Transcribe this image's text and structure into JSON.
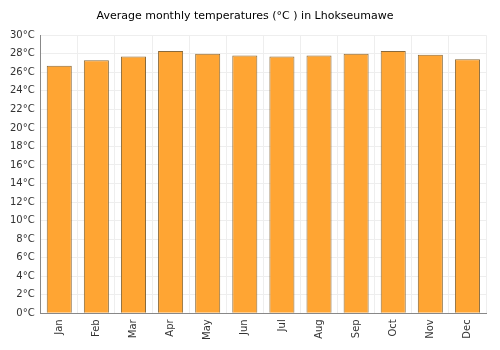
{
  "chart_data": {
    "type": "bar",
    "title": "Average monthly temperatures (°C ) in Lhokseumawe",
    "categories": [
      "Jan",
      "Feb",
      "Mar",
      "Apr",
      "May",
      "Jun",
      "Jul",
      "Aug",
      "Sep",
      "Oct",
      "Nov",
      "Dec"
    ],
    "values": [
      26.7,
      27.3,
      27.7,
      28.3,
      28.0,
      27.8,
      27.7,
      27.8,
      28.0,
      28.3,
      27.9,
      27.4
    ],
    "color": "#ffa533",
    "ylim": [
      0,
      30
    ],
    "yticks": [
      {
        "value": 0,
        "label": "0°C"
      },
      {
        "value": 2,
        "label": "2°C"
      },
      {
        "value": 4,
        "label": "4°C"
      },
      {
        "value": 6,
        "label": "6°C"
      },
      {
        "value": 8,
        "label": "8°C"
      },
      {
        "value": 10,
        "label": "10°C"
      },
      {
        "value": 12,
        "label": "12°C"
      },
      {
        "value": 14,
        "label": "14°C"
      },
      {
        "value": 16,
        "label": "16°C"
      },
      {
        "value": 18,
        "label": "18°C"
      },
      {
        "value": 20,
        "label": "20°C"
      },
      {
        "value": 22,
        "label": "22°C"
      },
      {
        "value": 24,
        "label": "24°C"
      },
      {
        "value": 26,
        "label": "26°C"
      },
      {
        "value": 28,
        "label": "28°C"
      },
      {
        "value": 30,
        "label": "30°C"
      }
    ],
    "grid": true
  }
}
